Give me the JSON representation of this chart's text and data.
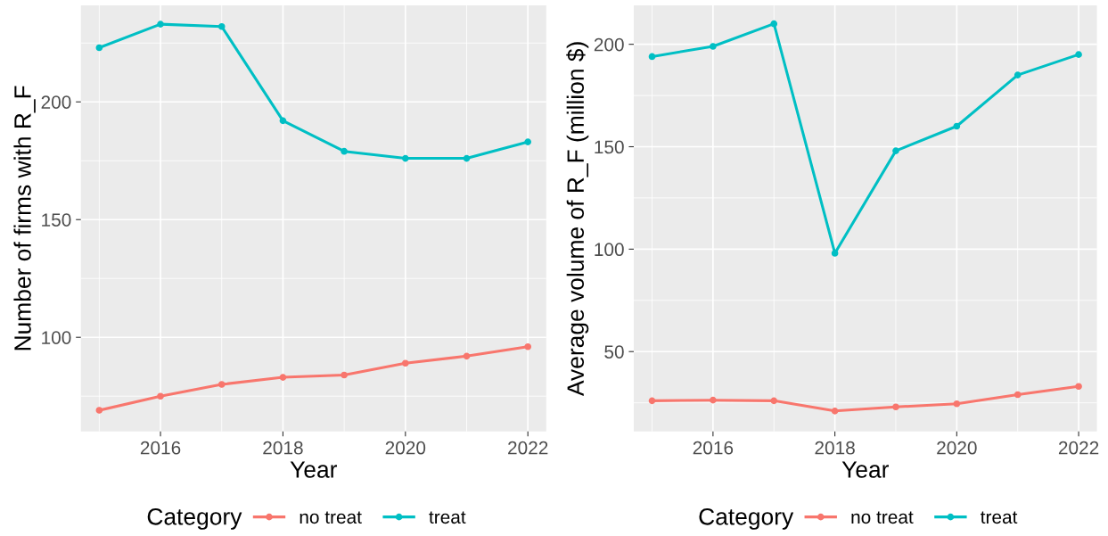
{
  "chart_data": [
    {
      "type": "line",
      "xlabel": "Year",
      "ylabel": "Number of firms with R_F",
      "legend_title": "Category",
      "legend": "bottom",
      "grid": true,
      "marker": "circle",
      "line_style": "solid",
      "x": [
        2015,
        2016,
        2017,
        2018,
        2019,
        2020,
        2021,
        2022
      ],
      "xlim": [
        2014.7,
        2022.3
      ],
      "xticks": [
        2016,
        2018,
        2020,
        2022
      ],
      "ylim": [
        60,
        241
      ],
      "yticks": [
        100,
        150,
        200
      ],
      "series": [
        {
          "name": "no treat",
          "color": "#f8766d",
          "values": [
            69,
            75,
            80,
            83,
            84,
            89,
            92,
            96
          ]
        },
        {
          "name": "treat",
          "color": "#00bfc4",
          "values": [
            223,
            233,
            232,
            192,
            179,
            176,
            176,
            183
          ]
        }
      ]
    },
    {
      "type": "line",
      "xlabel": "Year",
      "ylabel": "Average volume of R_F (million $)",
      "legend_title": "Category",
      "legend": "bottom",
      "grid": true,
      "marker": "circle",
      "line_style": "solid",
      "x": [
        2015,
        2016,
        2017,
        2018,
        2019,
        2020,
        2021,
        2022
      ],
      "xlim": [
        2014.7,
        2022.3
      ],
      "xticks": [
        2016,
        2018,
        2020,
        2022
      ],
      "ylim": [
        11,
        219
      ],
      "yticks": [
        50,
        100,
        150,
        200
      ],
      "series": [
        {
          "name": "no treat",
          "color": "#f8766d",
          "values": [
            26,
            26.3,
            26,
            21,
            23,
            24.5,
            29,
            33
          ]
        },
        {
          "name": "treat",
          "color": "#00bfc4",
          "values": [
            194,
            199,
            210,
            98,
            148,
            160,
            185,
            195
          ]
        }
      ]
    }
  ]
}
